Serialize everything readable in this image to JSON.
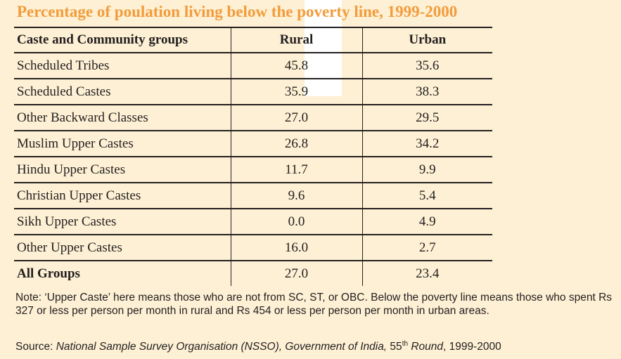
{
  "title": "Percentage of poulation living below the poverty line, 1999-2000",
  "table": {
    "headers": [
      "Caste and Community groups",
      "Rural",
      "Urban"
    ],
    "rows": [
      {
        "group": "Scheduled Tribes",
        "rural": "45.8",
        "urban": "35.6"
      },
      {
        "group": "Scheduled Castes",
        "rural": "35.9",
        "urban": "38.3"
      },
      {
        "group": "Other Backward Classes",
        "rural": "27.0",
        "urban": "29.5"
      },
      {
        "group": "Muslim Upper Castes",
        "rural": "26.8",
        "urban": "34.2"
      },
      {
        "group": "Hindu Upper Castes",
        "rural": "11.7",
        "urban": "9.9"
      },
      {
        "group": "Christian Upper Castes",
        "rural": "9.6",
        "urban": "5.4"
      },
      {
        "group": "Sikh Upper Castes",
        "rural": "0.0",
        "urban": "4.9"
      },
      {
        "group": "Other Upper Castes",
        "rural": "16.0",
        "urban": "2.7"
      }
    ],
    "total": {
      "group": "All Groups",
      "rural": "27.0",
      "urban": "23.4"
    }
  },
  "note": "Note: ‘Upper Caste’ here means those who are not from SC, ST, or OBC. Below the poverty line means those who spent Rs 327 or less per person per month in rural and Rs 454 or less per person per month in urban areas.",
  "source": {
    "prefix": "Source: ",
    "org": "National Sample Survey Organisation (NSSO), Government of India,",
    "round_num": " 55",
    "round_sup": "th",
    "round_word": " Round",
    "years": ", 1999-2000"
  },
  "colors": {
    "title": "#f39c3c",
    "background": "#fdf0d4",
    "text": "#231f20"
  }
}
